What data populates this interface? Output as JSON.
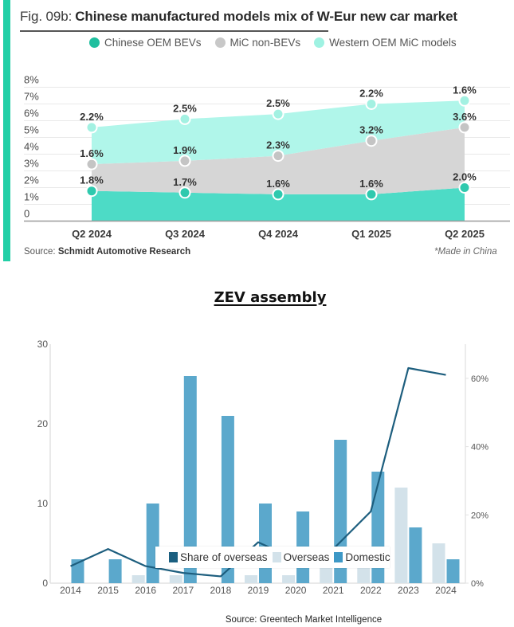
{
  "top_chart": {
    "accent_color": "#22cfa6",
    "title_prefix": "Fig. 09b:",
    "title_main": "Chinese manufactured models mix of W-Eur new car market",
    "legend": [
      {
        "label": "Chinese OEM BEVs",
        "color": "#1fbf9f"
      },
      {
        "label": "MiC non-BEVs",
        "color": "#c8c8c8"
      },
      {
        "label": "Western OEM MiC models",
        "color": "#9ff2e2"
      }
    ],
    "source_prefix": "Source:",
    "source_name": "Schmidt Automotive Research",
    "footnote": "*Made in China"
  },
  "bottom_chart": {
    "title": "ZEV assembly",
    "legend": [
      {
        "label": "Share of overseas",
        "color": "#1b5f80"
      },
      {
        "label": "Overseas",
        "color": "#d3e2ea"
      },
      {
        "label": "Domestic",
        "color": "#3d98c6"
      }
    ],
    "source": "Source: Greentech Market Intelligence"
  },
  "chart_data": [
    {
      "type": "area",
      "stacked": true,
      "title": "Fig. 09b: Chinese manufactured models mix of W-Eur new car market",
      "xlabel": "",
      "ylabel": "",
      "categories": [
        "Q2 2024",
        "Q3 2024",
        "Q4 2024",
        "Q1 2025",
        "Q2 2025"
      ],
      "series": [
        {
          "name": "Chinese OEM BEVs",
          "values": [
            1.8,
            1.7,
            1.6,
            1.6,
            2.0
          ],
          "value_labels": [
            "1.8%",
            "1.7%",
            "1.6%",
            "1.6%",
            "2.0%"
          ],
          "area_color": "#4ddbc6",
          "marker_color": "#2fc9ae"
        },
        {
          "name": "MiC non-BEVs",
          "values": [
            1.6,
            1.9,
            2.3,
            3.2,
            3.6
          ],
          "value_labels": [
            "1.6%",
            "1.9%",
            "2.3%",
            "3.2%",
            "3.6%"
          ],
          "area_color": "#d6d6d6",
          "marker_color": "#c4c4c4"
        },
        {
          "name": "Western OEM MiC models",
          "values": [
            2.2,
            2.5,
            2.5,
            2.2,
            1.6
          ],
          "value_labels": [
            "2.2%",
            "2.5%",
            "2.5%",
            "2.2%",
            "1.6%"
          ],
          "area_color": "#b0f6ea",
          "marker_color": "#a3f1e2"
        }
      ],
      "ylim": [
        0,
        8
      ],
      "ytick_values": [
        0,
        1,
        2,
        3,
        4,
        5,
        6,
        7,
        8
      ],
      "ytick_labels": [
        "0",
        "1%",
        "2%",
        "3%",
        "4%",
        "5%",
        "6%",
        "7%",
        "8%"
      ],
      "grid": true,
      "legend_position": "top"
    },
    {
      "type": "bar",
      "title": "ZEV assembly",
      "xlabel": "",
      "ylabel": "",
      "categories": [
        "2014",
        "2015",
        "2016",
        "2017",
        "2018",
        "2019",
        "2020",
        "2021",
        "2022",
        "2023",
        "2024"
      ],
      "series": [
        {
          "name": "Overseas",
          "type": "bar",
          "axis": "left",
          "color": "#d3e2ea",
          "values": [
            0,
            0,
            1,
            1,
            0,
            1,
            1,
            2,
            4,
            12,
            5
          ]
        },
        {
          "name": "Domestic",
          "type": "bar",
          "axis": "left",
          "color": "#5ba8cc",
          "values": [
            3,
            3,
            10,
            26,
            21,
            10,
            9,
            18,
            14,
            7,
            3
          ]
        },
        {
          "name": "Share of overseas",
          "type": "line",
          "axis": "right",
          "color": "#1d5e7e",
          "unit": "%",
          "values": [
            5,
            10,
            5,
            3,
            2,
            12,
            7,
            10,
            21,
            63,
            61
          ]
        }
      ],
      "ylim": [
        0,
        30
      ],
      "ytick_values": [
        0,
        10,
        20,
        30
      ],
      "ytick_labels": [
        "0",
        "10",
        "20",
        "30"
      ],
      "y2lim": [
        0,
        70
      ],
      "y2tick_values": [
        0,
        20,
        40,
        60
      ],
      "y2tick_labels": [
        "0%",
        "20%",
        "40%",
        "60%"
      ],
      "grid": false,
      "legend_position": "inside-bottom-center"
    }
  ]
}
